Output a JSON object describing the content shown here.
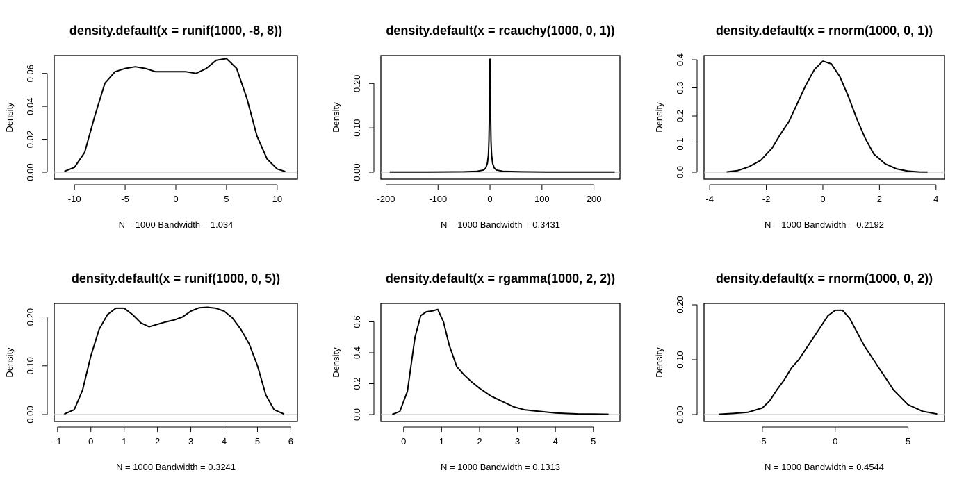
{
  "chart_data": [
    {
      "type": "line",
      "title": "density.default(x = runif(1000, -8, 8))",
      "ylabel": "Density",
      "xlabel": "N = 1000   Bandwidth = 1.034",
      "xlim": [
        -12,
        12
      ],
      "ylim": [
        0,
        0.07
      ],
      "xticks": [
        "-10",
        "-5",
        "0",
        "5",
        "10"
      ],
      "yticks": [
        "0.00",
        "0.02",
        "0.04",
        "0.06"
      ],
      "grid": false,
      "series": [
        {
          "x": [
            -11.0,
            -10.0,
            -9.0,
            -8.0,
            -7.0,
            -6.0,
            -5.0,
            -4.0,
            -3.0,
            -2.0,
            -1.0,
            0.0,
            1.0,
            2.0,
            3.0,
            4.0,
            5.0,
            6.0,
            7.0,
            8.0,
            9.0,
            10.0,
            10.8
          ],
          "y": [
            0.0005,
            0.003,
            0.012,
            0.034,
            0.054,
            0.061,
            0.063,
            0.064,
            0.063,
            0.061,
            0.061,
            0.061,
            0.061,
            0.06,
            0.063,
            0.068,
            0.069,
            0.063,
            0.045,
            0.022,
            0.008,
            0.002,
            0.0004
          ]
        }
      ]
    },
    {
      "type": "line",
      "title": "density.default(x = rcauchy(1000, 0, 1))",
      "ylabel": "Density",
      "xlabel": "N = 1000   Bandwidth = 0.3431",
      "xlim": [
        -210,
        250
      ],
      "ylim": [
        0,
        0.26
      ],
      "xticks": [
        "-200",
        "-100",
        "0",
        "100",
        "200"
      ],
      "yticks": [
        "0.00",
        "0.10",
        "0.20"
      ],
      "grid": false,
      "series": [
        {
          "x": [
            -193,
            -120,
            -50,
            -25,
            -12,
            -8,
            -5,
            -3,
            -2,
            -1,
            -0.5,
            0,
            0.5,
            1,
            2,
            3,
            5,
            8,
            12,
            25,
            60,
            110,
            155,
            240
          ],
          "y": [
            0.0005,
            0.0005,
            0.001,
            0.002,
            0.005,
            0.01,
            0.02,
            0.04,
            0.07,
            0.14,
            0.22,
            0.255,
            0.22,
            0.14,
            0.07,
            0.04,
            0.02,
            0.01,
            0.005,
            0.002,
            0.001,
            0.0005,
            0.0005,
            0.0005
          ]
        }
      ]
    },
    {
      "type": "line",
      "title": "density.default(x = rnorm(1000, 0, 1))",
      "ylabel": "Density",
      "xlabel": "N = 1000   Bandwidth = 0.2192",
      "xlim": [
        -4.2,
        4.3
      ],
      "ylim": [
        0,
        0.41
      ],
      "xticks": [
        "-4",
        "-2",
        "0",
        "2",
        "4"
      ],
      "yticks": [
        "0.0",
        "0.1",
        "0.2",
        "0.3",
        "0.4"
      ],
      "grid": false,
      "series": [
        {
          "x": [
            -3.4,
            -3.0,
            -2.6,
            -2.2,
            -1.8,
            -1.5,
            -1.2,
            -0.9,
            -0.6,
            -0.3,
            0.0,
            0.3,
            0.6,
            0.9,
            1.2,
            1.5,
            1.8,
            2.2,
            2.6,
            3.0,
            3.4,
            3.7
          ],
          "y": [
            0.001,
            0.006,
            0.02,
            0.042,
            0.085,
            0.135,
            0.18,
            0.245,
            0.31,
            0.365,
            0.395,
            0.385,
            0.34,
            0.27,
            0.19,
            0.12,
            0.065,
            0.03,
            0.012,
            0.004,
            0.001,
            0.0005
          ]
        }
      ]
    },
    {
      "type": "line",
      "title": "density.default(x = runif(1000, 0, 5))",
      "ylabel": "Density",
      "xlabel": "N = 1000   Bandwidth = 0.3241",
      "xlim": [
        -1.1,
        6.2
      ],
      "ylim": [
        0,
        0.225
      ],
      "xticks": [
        "-1",
        "0",
        "1",
        "2",
        "3",
        "4",
        "5",
        "6"
      ],
      "yticks": [
        "0.00",
        "0.10",
        "0.20"
      ],
      "grid": false,
      "series": [
        {
          "x": [
            -0.8,
            -0.5,
            -0.25,
            0.0,
            0.25,
            0.5,
            0.75,
            1.0,
            1.25,
            1.5,
            1.75,
            2.0,
            2.25,
            2.5,
            2.75,
            3.0,
            3.25,
            3.5,
            3.75,
            4.0,
            4.25,
            4.5,
            4.75,
            5.0,
            5.25,
            5.5,
            5.8
          ],
          "y": [
            0.001,
            0.01,
            0.05,
            0.12,
            0.175,
            0.205,
            0.218,
            0.218,
            0.205,
            0.188,
            0.18,
            0.185,
            0.19,
            0.194,
            0.2,
            0.212,
            0.219,
            0.22,
            0.218,
            0.212,
            0.198,
            0.175,
            0.145,
            0.1,
            0.04,
            0.01,
            0.001
          ]
        }
      ]
    },
    {
      "type": "line",
      "title": "density.default(x = rgamma(1000, 2, 2))",
      "ylabel": "Density",
      "xlabel": "N = 1000   Bandwidth = 0.1313",
      "xlim": [
        -0.6,
        5.7
      ],
      "ylim": [
        0,
        0.71
      ],
      "xticks": [
        "0",
        "1",
        "2",
        "3",
        "4",
        "5"
      ],
      "yticks": [
        "0.0",
        "0.2",
        "0.4",
        "0.6"
      ],
      "grid": false,
      "series": [
        {
          "x": [
            -0.3,
            -0.1,
            0.1,
            0.3,
            0.45,
            0.6,
            0.75,
            0.9,
            1.05,
            1.2,
            1.4,
            1.6,
            1.8,
            2.0,
            2.3,
            2.6,
            2.9,
            3.2,
            3.6,
            4.0,
            4.6,
            5.0,
            5.4
          ],
          "y": [
            0.001,
            0.02,
            0.15,
            0.5,
            0.64,
            0.665,
            0.67,
            0.68,
            0.6,
            0.45,
            0.31,
            0.255,
            0.21,
            0.17,
            0.12,
            0.085,
            0.05,
            0.03,
            0.02,
            0.01,
            0.004,
            0.003,
            0.002
          ]
        }
      ]
    },
    {
      "type": "line",
      "title": "density.default(x = rnorm(1000, 0, 2))",
      "ylabel": "Density",
      "xlabel": "N = 1000   Bandwidth = 0.4544",
      "xlim": [
        -9.0,
        7.5
      ],
      "ylim": [
        0,
        0.2
      ],
      "xticks": [
        "-5",
        "0",
        "5"
      ],
      "yticks": [
        "0.00",
        "0.10",
        "0.20"
      ],
      "grid": false,
      "series": [
        {
          "x": [
            -8.0,
            -7.0,
            -6.0,
            -5.0,
            -4.5,
            -4.0,
            -3.5,
            -3.0,
            -2.5,
            -2.0,
            -1.5,
            -1.0,
            -0.5,
            0.0,
            0.5,
            1.0,
            1.5,
            2.0,
            2.5,
            3.0,
            3.5,
            4.0,
            5.0,
            6.0,
            7.0
          ],
          "y": [
            0.0005,
            0.002,
            0.004,
            0.012,
            0.025,
            0.045,
            0.063,
            0.085,
            0.1,
            0.12,
            0.14,
            0.16,
            0.18,
            0.19,
            0.19,
            0.175,
            0.15,
            0.125,
            0.105,
            0.085,
            0.065,
            0.045,
            0.018,
            0.006,
            0.001
          ]
        }
      ]
    }
  ]
}
